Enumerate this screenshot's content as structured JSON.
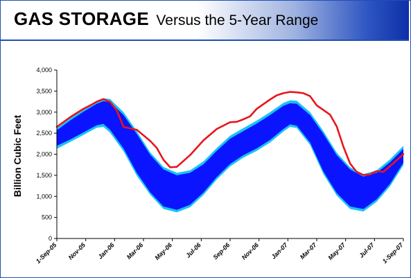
{
  "title": {
    "bold": "GAS STORAGE",
    "light": "Versus the 5-Year Range"
  },
  "colors": {
    "outer_band": "#19c3f2",
    "inner_band": "#0a14ff",
    "current_line": "#e8141c",
    "banner_blue": "#1f4fb3"
  },
  "chart_data": {
    "type": "area",
    "ylabel": "Billion Cubic Feet",
    "ylim": [
      0,
      4000
    ],
    "y_ticks": [
      "0",
      "500",
      "1,000",
      "1,500",
      "2,000",
      "2,500",
      "3,000",
      "3,500",
      "4,000"
    ],
    "x_ticks": [
      "1-Sep-05",
      "Nov-05",
      "Jan-06",
      "Mar-06",
      "May-06",
      "Jul-06",
      "Sep-06",
      "Nov-06",
      "Jan-07",
      "Mar-07",
      "May-07",
      "Jul-07",
      "1-Sep-07"
    ],
    "x_domain": [
      0,
      104
    ],
    "grid": false,
    "legend": "none",
    "series": [
      {
        "role": "5-year maximum",
        "x": [
          0,
          4,
          8,
          12,
          14,
          16,
          20,
          24,
          28,
          32,
          36,
          40,
          44,
          48,
          52,
          56,
          60,
          64,
          68,
          70,
          72,
          76,
          80,
          84,
          88,
          92,
          96,
          100,
          104
        ],
        "values": [
          2620,
          2860,
          3080,
          3270,
          3330,
          3310,
          3000,
          2550,
          2050,
          1700,
          1560,
          1620,
          1830,
          2150,
          2440,
          2620,
          2800,
          3000,
          3220,
          3280,
          3270,
          3000,
          2550,
          2040,
          1690,
          1530,
          1620,
          1880,
          2200
        ]
      },
      {
        "role": "5-year range upper inner edge",
        "x": [
          0,
          4,
          8,
          12,
          14,
          16,
          20,
          24,
          28,
          32,
          36,
          40,
          44,
          48,
          52,
          56,
          60,
          64,
          68,
          70,
          72,
          76,
          80,
          84,
          88,
          92,
          96,
          100,
          104
        ],
        "values": [
          2570,
          2800,
          3010,
          3200,
          3260,
          3240,
          2930,
          2480,
          1990,
          1640,
          1500,
          1560,
          1760,
          2080,
          2370,
          2550,
          2730,
          2930,
          3150,
          3210,
          3200,
          2930,
          2480,
          1980,
          1640,
          1470,
          1560,
          1810,
          2130
        ]
      },
      {
        "role": "5-year range lower inner edge",
        "x": [
          0,
          4,
          8,
          12,
          14,
          16,
          20,
          24,
          28,
          32,
          36,
          40,
          44,
          48,
          52,
          56,
          60,
          64,
          68,
          70,
          72,
          76,
          80,
          84,
          88,
          92,
          96,
          100,
          104
        ],
        "values": [
          2200,
          2350,
          2520,
          2690,
          2720,
          2580,
          2140,
          1560,
          1100,
          760,
          680,
          800,
          1090,
          1460,
          1770,
          1980,
          2140,
          2340,
          2600,
          2710,
          2680,
          2280,
          1590,
          1080,
          760,
          700,
          930,
          1300,
          1800
        ]
      },
      {
        "role": "5-year minimum",
        "x": [
          0,
          4,
          8,
          12,
          14,
          16,
          20,
          24,
          28,
          32,
          36,
          40,
          44,
          48,
          52,
          56,
          60,
          64,
          68,
          70,
          72,
          76,
          80,
          84,
          88,
          92,
          96,
          100,
          104
        ],
        "values": [
          2130,
          2290,
          2460,
          2630,
          2650,
          2510,
          2070,
          1490,
          1040,
          700,
          620,
          740,
          1030,
          1400,
          1710,
          1920,
          2080,
          2280,
          2540,
          2650,
          2620,
          2220,
          1530,
          1020,
          700,
          640,
          870,
          1240,
          1740
        ]
      },
      {
        "role": "current storage",
        "x": [
          0,
          4,
          8,
          10,
          12,
          14,
          16,
          18,
          20,
          24,
          28,
          30,
          32,
          34,
          36,
          40,
          44,
          48,
          52,
          54,
          56,
          58,
          60,
          64,
          66,
          68,
          70,
          72,
          74,
          76,
          78,
          80,
          82,
          84,
          86,
          88,
          90,
          92,
          94,
          96,
          98,
          100,
          104
        ],
        "values": [
          2650,
          2880,
          3080,
          3160,
          3250,
          3310,
          3240,
          3040,
          2650,
          2580,
          2320,
          2150,
          1870,
          1690,
          1700,
          1980,
          2330,
          2600,
          2760,
          2770,
          2830,
          2900,
          3080,
          3300,
          3400,
          3450,
          3480,
          3470,
          3450,
          3380,
          3160,
          3050,
          2940,
          2660,
          2180,
          1780,
          1580,
          1510,
          1520,
          1600,
          1580,
          1720,
          2000
        ]
      }
    ]
  }
}
